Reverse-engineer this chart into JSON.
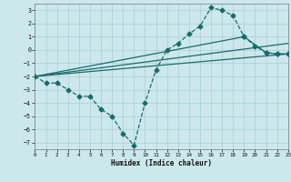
{
  "background_color": "#cce8ec",
  "grid_color": "#aacdd4",
  "line_color": "#1a6b6b",
  "xlim": [
    0,
    23
  ],
  "ylim": [
    -7.5,
    3.5
  ],
  "xticks": [
    0,
    1,
    2,
    3,
    4,
    5,
    6,
    7,
    8,
    9,
    10,
    11,
    12,
    13,
    14,
    15,
    16,
    17,
    18,
    19,
    20,
    21,
    22,
    23
  ],
  "yticks": [
    -7,
    -6,
    -5,
    -4,
    -3,
    -2,
    -1,
    0,
    1,
    2,
    3
  ],
  "xlabel": "Humidex (Indice chaleur)",
  "lines": [
    {
      "x": [
        0,
        1,
        2,
        3,
        4,
        5,
        6,
        7,
        8,
        9,
        10,
        11,
        12,
        13,
        14,
        15,
        16,
        17,
        18,
        19,
        20,
        21,
        22,
        23
      ],
      "y": [
        -2,
        -2.5,
        -2.5,
        -3.0,
        -3.5,
        -3.5,
        -4.5,
        -5.0,
        -6.3,
        -7.2,
        -4.0,
        -1.5,
        0.0,
        0.5,
        1.2,
        1.8,
        3.2,
        3.0,
        2.6,
        1.0,
        0.3,
        -0.2,
        -0.3,
        -0.3
      ],
      "dashed": true,
      "marker": "D",
      "ms": 2.5
    },
    {
      "x": [
        0,
        23
      ],
      "y": [
        -2.0,
        -0.3
      ],
      "dashed": false,
      "marker": null,
      "ms": 0
    },
    {
      "x": [
        0,
        23
      ],
      "y": [
        -2.0,
        0.5
      ],
      "dashed": false,
      "marker": null,
      "ms": 0
    },
    {
      "x": [
        0,
        19,
        21,
        22,
        23
      ],
      "y": [
        -2.0,
        1.0,
        -0.2,
        -0.3,
        -0.3
      ],
      "dashed": false,
      "marker": "D",
      "ms": 2.5
    }
  ]
}
